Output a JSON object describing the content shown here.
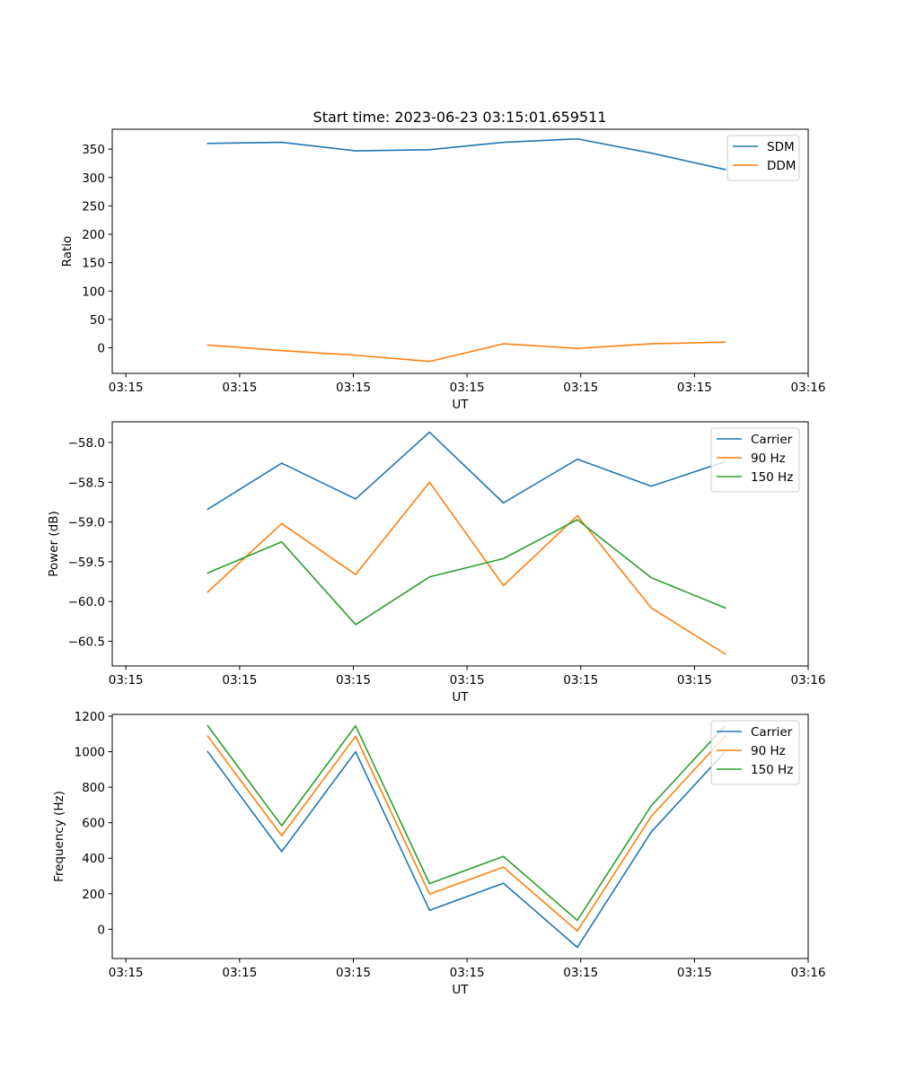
{
  "figure": {
    "title": "Start time: 2023-06-23 03:15:01.659511"
  },
  "chart_data": [
    {
      "type": "line",
      "title": "Start time: 2023-06-23 03:15:01.659511",
      "xlabel": "UT",
      "ylabel": "Ratio",
      "x": [
        0.84,
        1.49,
        2.14,
        2.79,
        3.44,
        4.09,
        4.74,
        5.39
      ],
      "xlim": [
        0,
        6.12
      ],
      "xticks": [
        0.12,
        1.12,
        2.12,
        3.12,
        4.12,
        5.12,
        6.12
      ],
      "xtick_labels": [
        "03:15",
        "03:15",
        "03:15",
        "03:15",
        "03:15",
        "03:15",
        "03:16"
      ],
      "ylim": [
        -45,
        385
      ],
      "yticks": [
        0,
        50,
        100,
        150,
        200,
        250,
        300,
        350
      ],
      "grid": false,
      "legend_position": "top-right",
      "series": [
        {
          "name": "SDM",
          "color": "#1f77b4",
          "values": [
            360,
            362,
            347,
            349,
            362,
            368,
            343,
            314
          ]
        },
        {
          "name": "DDM",
          "color": "#ff7f0e",
          "values": [
            5,
            -5,
            -13,
            -24,
            7,
            -1,
            7,
            10
          ]
        }
      ]
    },
    {
      "type": "line",
      "xlabel": "UT",
      "ylabel": "Power (dB)",
      "x": [
        0.84,
        1.49,
        2.14,
        2.79,
        3.44,
        4.09,
        4.74,
        5.39
      ],
      "xlim": [
        0,
        6.12
      ],
      "xticks": [
        0.12,
        1.12,
        2.12,
        3.12,
        4.12,
        5.12,
        6.12
      ],
      "xtick_labels": [
        "03:15",
        "03:15",
        "03:15",
        "03:15",
        "03:15",
        "03:15",
        "03:16"
      ],
      "ylim": [
        -60.81,
        -57.74
      ],
      "yticks": [
        -60.5,
        -60.0,
        -59.5,
        -59.0,
        -58.5,
        -58.0
      ],
      "ytick_labels": [
        "−60.5",
        "−60.0",
        "−59.5",
        "−59.0",
        "−58.5",
        "−58.0"
      ],
      "grid": false,
      "legend_position": "top-right",
      "series": [
        {
          "name": "Carrier",
          "color": "#1f77b4",
          "values": [
            -58.84,
            -58.26,
            -58.71,
            -57.87,
            -58.76,
            -58.21,
            -58.55,
            -58.24
          ]
        },
        {
          "name": "90 Hz",
          "color": "#ff7f0e",
          "values": [
            -59.88,
            -59.02,
            -59.66,
            -58.5,
            -59.8,
            -58.92,
            -60.08,
            -60.66
          ]
        },
        {
          "name": "150 Hz",
          "color": "#2ca02c",
          "values": [
            -59.64,
            -59.25,
            -60.29,
            -59.69,
            -59.46,
            -58.97,
            -59.7,
            -60.08
          ]
        }
      ]
    },
    {
      "type": "line",
      "xlabel": "UT",
      "ylabel": "Frequency (Hz)",
      "x": [
        0.84,
        1.49,
        2.14,
        2.79,
        3.44,
        4.09,
        4.74,
        5.39
      ],
      "xlim": [
        0,
        6.12
      ],
      "xticks": [
        0.12,
        1.12,
        2.12,
        3.12,
        4.12,
        5.12,
        6.12
      ],
      "xtick_labels": [
        "03:15",
        "03:15",
        "03:15",
        "03:15",
        "03:15",
        "03:15",
        "03:16"
      ],
      "ylim": [
        -165,
        1210
      ],
      "yticks": [
        0,
        200,
        400,
        600,
        800,
        1000,
        1200
      ],
      "grid": false,
      "legend_position": "top-right",
      "series": [
        {
          "name": "Carrier",
          "color": "#1f77b4",
          "values": [
            1000,
            437,
            1000,
            107,
            259,
            -102,
            548,
            1000
          ]
        },
        {
          "name": "90 Hz",
          "color": "#ff7f0e",
          "values": [
            1087,
            527,
            1087,
            198,
            350,
            -10,
            636,
            1087
          ]
        },
        {
          "name": "150 Hz",
          "color": "#2ca02c",
          "values": [
            1146,
            583,
            1146,
            257,
            410,
            50,
            696,
            1146
          ]
        }
      ]
    }
  ]
}
